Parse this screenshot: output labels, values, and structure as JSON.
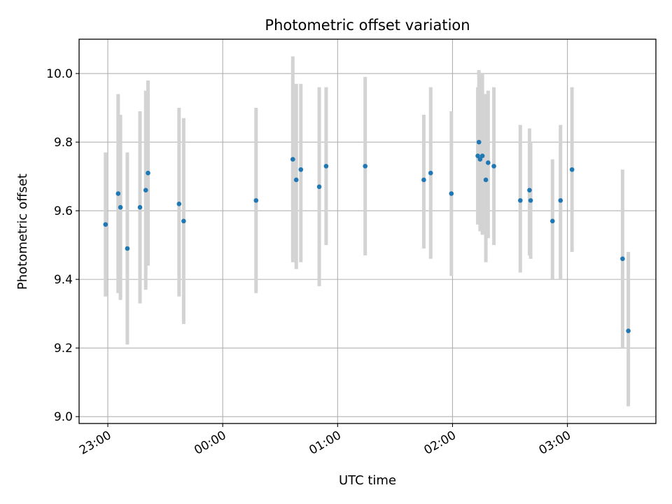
{
  "chart_data": {
    "type": "scatter",
    "title": "Photometric offset variation",
    "xlabel": "UTC time",
    "ylabel": "Photometric offset",
    "grid": true,
    "xlim": [
      -0.25,
      4.77
    ],
    "ylim": [
      8.98,
      10.1
    ],
    "x_units": "hours after 23:00 UTC",
    "x_ticks": [
      {
        "value": 0,
        "label": "23:00"
      },
      {
        "value": 1,
        "label": "00:00"
      },
      {
        "value": 2,
        "label": "01:00"
      },
      {
        "value": 3,
        "label": "02:00"
      },
      {
        "value": 4,
        "label": "03:00"
      }
    ],
    "y_ticks": [
      {
        "value": 9.0,
        "label": "9.0"
      },
      {
        "value": 9.2,
        "label": "9.2"
      },
      {
        "value": 9.4,
        "label": "9.4"
      },
      {
        "value": 9.6,
        "label": "9.6"
      },
      {
        "value": 9.8,
        "label": "9.8"
      },
      {
        "value": 10.0,
        "label": "10.0"
      }
    ],
    "point_color": "#1f77b4",
    "errorbar_color": "#d3d3d3",
    "points": [
      {
        "x": -0.02,
        "y": 9.56,
        "ylow": 9.35,
        "yhigh": 9.77
      },
      {
        "x": 0.09,
        "y": 9.65,
        "ylow": 9.36,
        "yhigh": 9.94
      },
      {
        "x": 0.11,
        "y": 9.61,
        "ylow": 9.34,
        "yhigh": 9.88
      },
      {
        "x": 0.17,
        "y": 9.49,
        "ylow": 9.21,
        "yhigh": 9.77
      },
      {
        "x": 0.28,
        "y": 9.61,
        "ylow": 9.33,
        "yhigh": 9.89
      },
      {
        "x": 0.33,
        "y": 9.66,
        "ylow": 9.37,
        "yhigh": 9.95
      },
      {
        "x": 0.35,
        "y": 9.71,
        "ylow": 9.44,
        "yhigh": 9.98
      },
      {
        "x": 0.62,
        "y": 9.62,
        "ylow": 9.35,
        "yhigh": 9.9
      },
      {
        "x": 0.66,
        "y": 9.57,
        "ylow": 9.27,
        "yhigh": 9.87
      },
      {
        "x": 1.29,
        "y": 9.63,
        "ylow": 9.36,
        "yhigh": 9.9
      },
      {
        "x": 1.61,
        "y": 9.75,
        "ylow": 9.45,
        "yhigh": 10.05
      },
      {
        "x": 1.64,
        "y": 9.69,
        "ylow": 9.43,
        "yhigh": 9.97
      },
      {
        "x": 1.68,
        "y": 9.72,
        "ylow": 9.45,
        "yhigh": 9.97
      },
      {
        "x": 1.84,
        "y": 9.67,
        "ylow": 9.38,
        "yhigh": 9.96
      },
      {
        "x": 1.9,
        "y": 9.73,
        "ylow": 9.5,
        "yhigh": 9.96
      },
      {
        "x": 2.24,
        "y": 9.73,
        "ylow": 9.47,
        "yhigh": 9.99
      },
      {
        "x": 2.75,
        "y": 9.69,
        "ylow": 9.49,
        "yhigh": 9.88
      },
      {
        "x": 2.81,
        "y": 9.71,
        "ylow": 9.46,
        "yhigh": 9.96
      },
      {
        "x": 2.99,
        "y": 9.65,
        "ylow": 9.41,
        "yhigh": 9.89
      },
      {
        "x": 3.22,
        "y": 9.76,
        "ylow": 9.56,
        "yhigh": 9.96
      },
      {
        "x": 3.23,
        "y": 9.8,
        "ylow": 9.59,
        "yhigh": 10.01
      },
      {
        "x": 3.24,
        "y": 9.75,
        "ylow": 9.54,
        "yhigh": 9.99
      },
      {
        "x": 3.26,
        "y": 9.76,
        "ylow": 9.53,
        "yhigh": 10.0
      },
      {
        "x": 3.29,
        "y": 9.69,
        "ylow": 9.45,
        "yhigh": 9.94
      },
      {
        "x": 3.31,
        "y": 9.74,
        "ylow": 9.52,
        "yhigh": 9.95
      },
      {
        "x": 3.36,
        "y": 9.73,
        "ylow": 9.5,
        "yhigh": 9.96
      },
      {
        "x": 3.59,
        "y": 9.63,
        "ylow": 9.42,
        "yhigh": 9.85
      },
      {
        "x": 3.67,
        "y": 9.66,
        "ylow": 9.47,
        "yhigh": 9.84
      },
      {
        "x": 3.68,
        "y": 9.63,
        "ylow": 9.46,
        "yhigh": 9.8
      },
      {
        "x": 3.87,
        "y": 9.57,
        "ylow": 9.4,
        "yhigh": 9.75
      },
      {
        "x": 3.94,
        "y": 9.63,
        "ylow": 9.4,
        "yhigh": 9.85
      },
      {
        "x": 4.04,
        "y": 9.72,
        "ylow": 9.48,
        "yhigh": 9.96
      },
      {
        "x": 4.48,
        "y": 9.46,
        "ylow": 9.2,
        "yhigh": 9.72
      },
      {
        "x": 4.53,
        "y": 9.25,
        "ylow": 9.03,
        "yhigh": 9.48
      }
    ]
  }
}
